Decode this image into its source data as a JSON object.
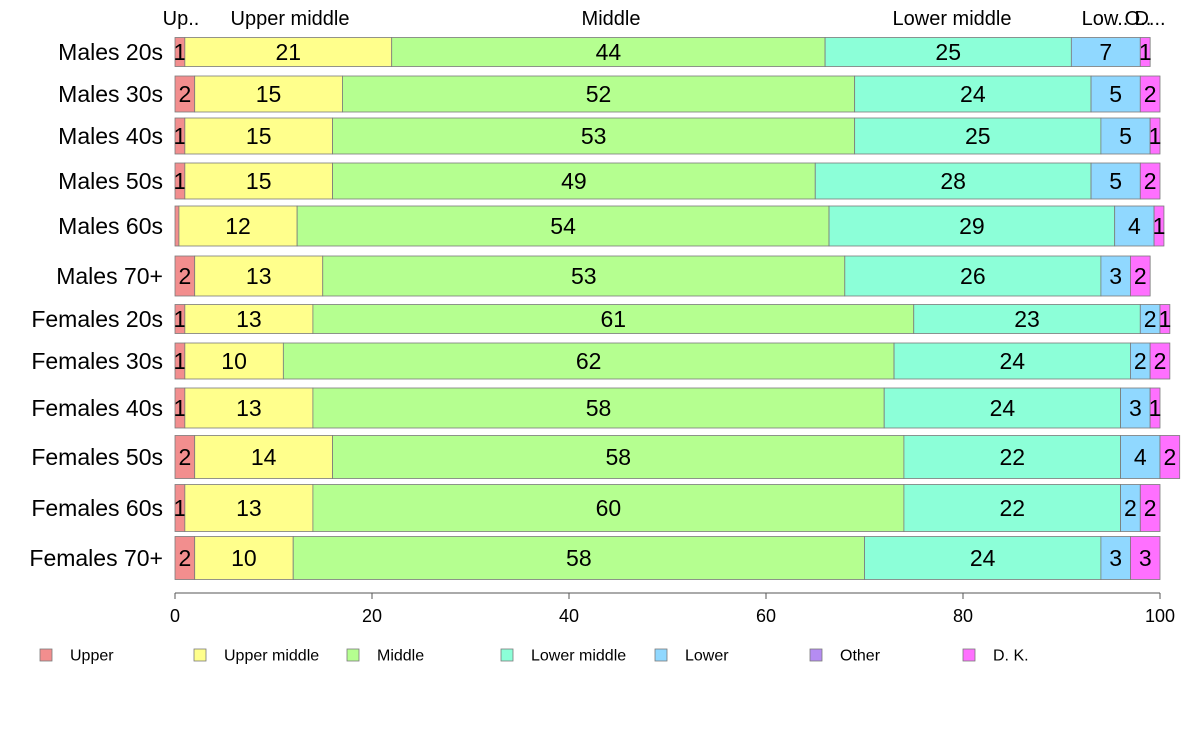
{
  "chart_data": {
    "type": "bar",
    "orientation": "horizontal",
    "stacked": true,
    "categories": [
      "Males 20s",
      "Males 30s",
      "Males 40s",
      "Males 50s",
      "Males 60s",
      "Males 70+",
      "Females 20s",
      "Females 30s",
      "Females 40s",
      "Females 50s",
      "Females 60s",
      "Females 70+"
    ],
    "series": [
      {
        "name": "Upper",
        "color": "#f28e8e",
        "values": [
          1,
          2,
          1,
          1,
          0.4,
          2,
          1,
          1,
          1,
          2,
          1,
          2
        ],
        "labels": [
          "1",
          "2",
          "1",
          "1",
          "",
          "2",
          "1",
          "1",
          "1",
          "2",
          "1",
          "2"
        ]
      },
      {
        "name": "Upper middle",
        "color": "#ffff8c",
        "values": [
          21,
          15,
          15,
          15,
          12,
          13,
          13,
          10,
          13,
          14,
          13,
          10
        ],
        "labels": [
          "21",
          "15",
          "15",
          "15",
          "12",
          "13",
          "13",
          "10",
          "13",
          "14",
          "13",
          "10"
        ]
      },
      {
        "name": "Middle",
        "color": "#b5ff90",
        "values": [
          44,
          52,
          53,
          49,
          54,
          53,
          61,
          62,
          58,
          58,
          60,
          58
        ],
        "labels": [
          "44",
          "52",
          "53",
          "49",
          "54",
          "53",
          "61",
          "62",
          "58",
          "58",
          "60",
          "58"
        ]
      },
      {
        "name": "Lower middle",
        "color": "#8cffd8",
        "values": [
          25,
          24,
          25,
          28,
          29,
          26,
          23,
          24,
          24,
          22,
          22,
          24
        ],
        "labels": [
          "25",
          "24",
          "25",
          "28",
          "29",
          "26",
          "23",
          "24",
          "24",
          "22",
          "22",
          "24"
        ]
      },
      {
        "name": "Lower",
        "color": "#90d8ff",
        "values": [
          7,
          5,
          5,
          5,
          4,
          3,
          2,
          2,
          3,
          4,
          2,
          3
        ],
        "labels": [
          "7",
          "5",
          "5",
          "5",
          "4",
          "3",
          "2",
          "2",
          "3",
          "4",
          "2",
          "3"
        ]
      },
      {
        "name": "Other",
        "color": "#b58cf2",
        "values": [
          0,
          0,
          0,
          0,
          0,
          0,
          0,
          0,
          0,
          0,
          0,
          0
        ],
        "labels": [
          "",
          "",
          "",
          "",
          "",
          "",
          "",
          "",
          "",
          "",
          "",
          ""
        ]
      },
      {
        "name": "D. K.",
        "color": "#ff70ff",
        "values": [
          1,
          2,
          1,
          2,
          1,
          2,
          1,
          2,
          1,
          2,
          2,
          3
        ],
        "labels": [
          "1",
          "2",
          "1",
          "2",
          "1",
          "2",
          "1",
          "2",
          "1",
          "2",
          "2",
          "3"
        ]
      }
    ],
    "top_labels": [
      "Up..",
      "Upper middle",
      "Middle",
      "Lower middle",
      "Low..",
      "O..",
      "D..."
    ],
    "xlim": [
      0,
      100
    ],
    "xticks": [
      "0",
      "20",
      "40",
      "60",
      "80",
      "100"
    ],
    "legend_position": "bottom",
    "grid": false
  }
}
